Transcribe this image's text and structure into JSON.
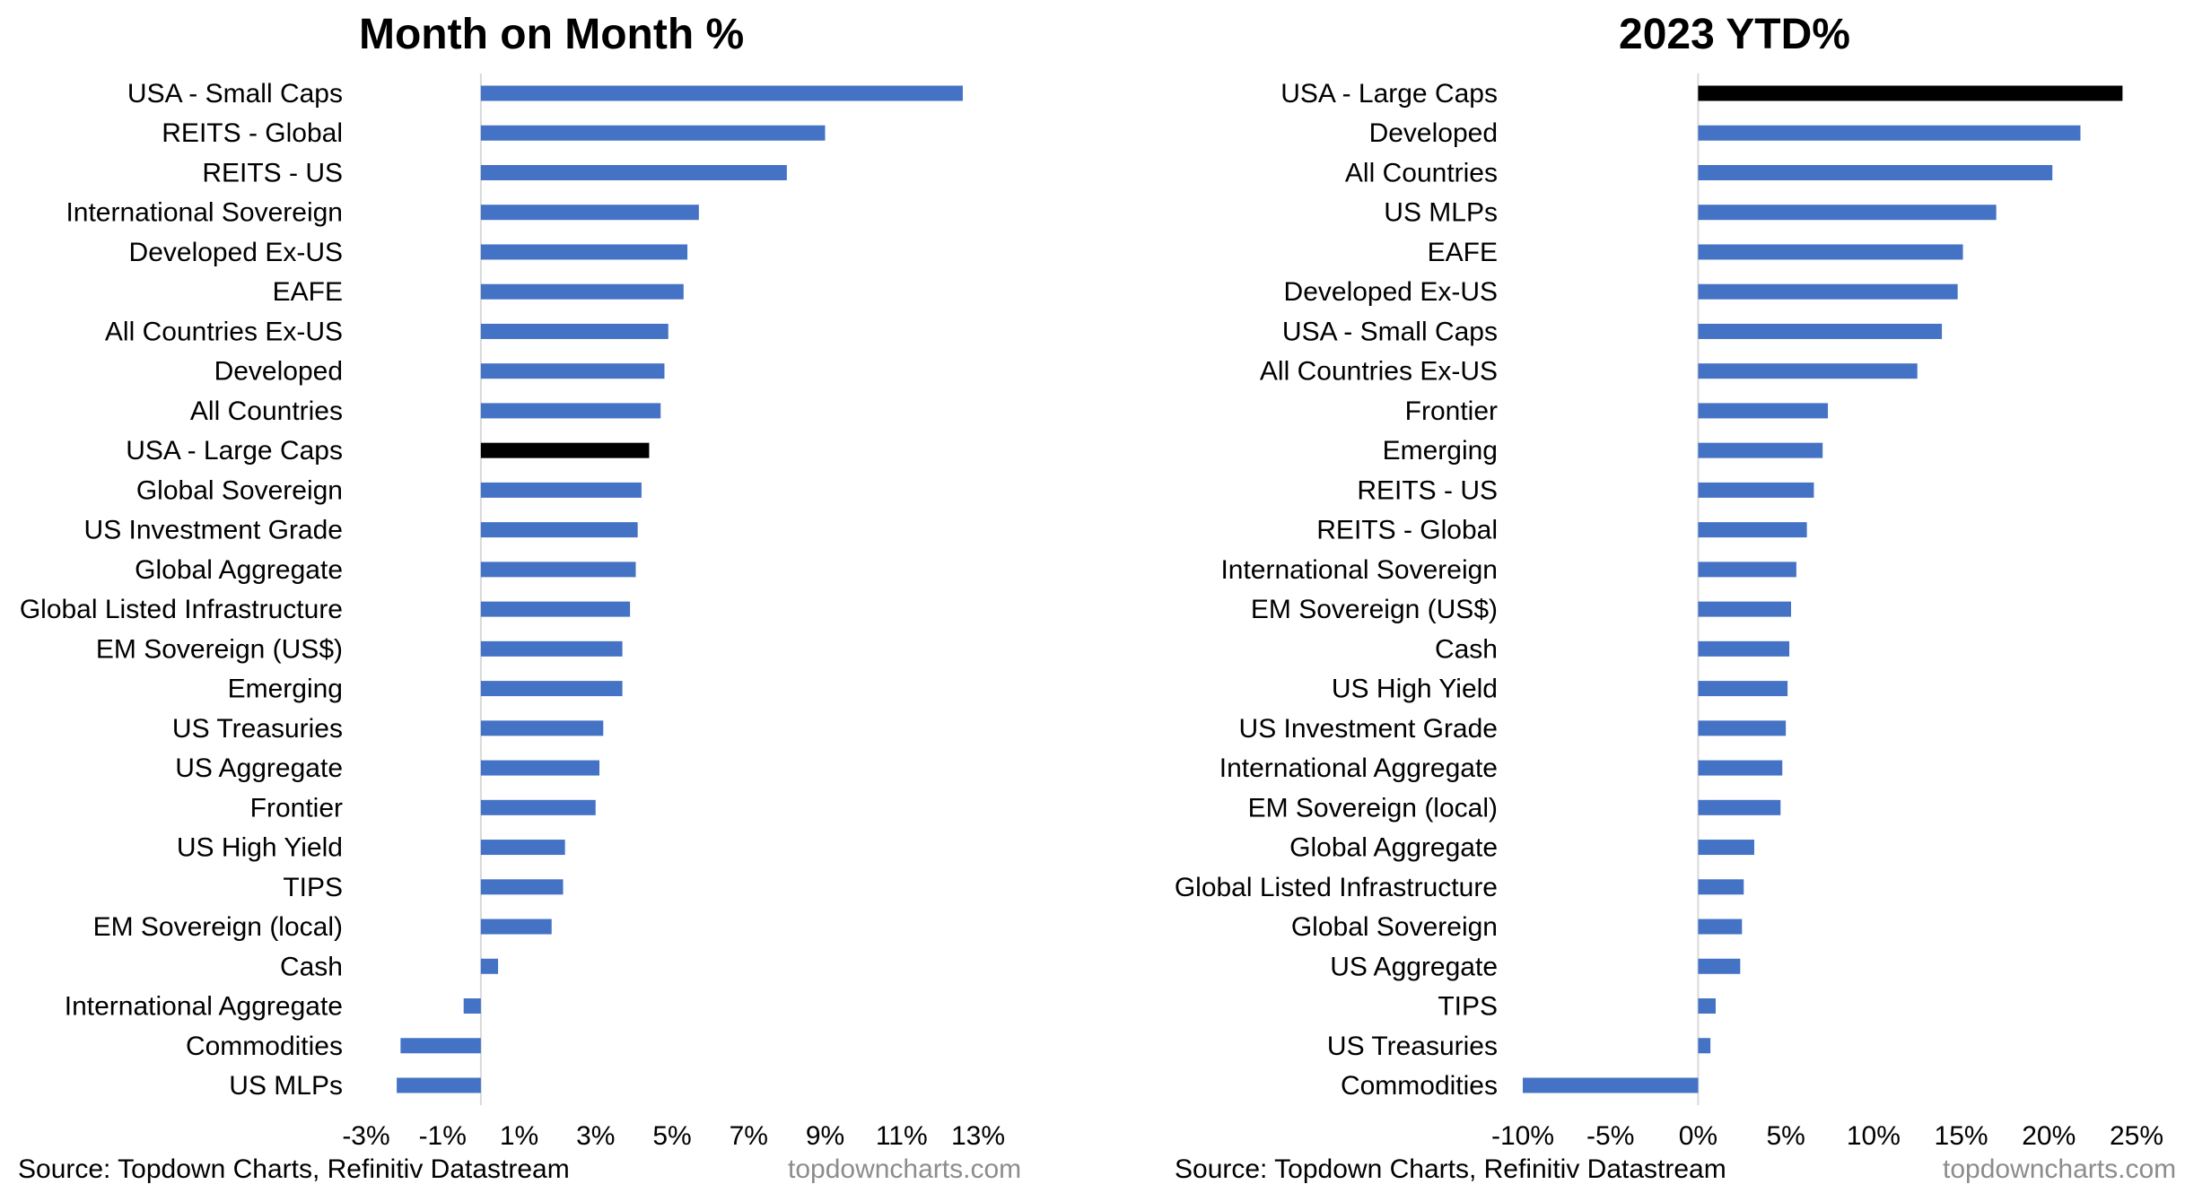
{
  "chart_data": [
    {
      "type": "bar",
      "orientation": "horizontal",
      "title": "Month on Month %",
      "categories": [
        "USA - Small Caps",
        "REITS - Global",
        "REITS - US",
        "International Sovereign",
        "Developed Ex-US",
        "EAFE",
        "All Countries Ex-US",
        "Developed",
        "All Countries",
        "USA - Large Caps",
        "Global Sovereign",
        "US Investment Grade",
        "Global Aggregate",
        "Global Listed Infrastructure",
        "EM Sovereign (US$)",
        "Emerging",
        "US Treasuries",
        "US Aggregate",
        "Frontier",
        "US High Yield",
        "TIPS",
        "EM Sovereign (local)",
        "Cash",
        "International Aggregate",
        "Commodities",
        "US MLPs"
      ],
      "values": [
        12.6,
        9.0,
        8.0,
        5.7,
        5.4,
        5.3,
        4.9,
        4.8,
        4.7,
        4.4,
        4.2,
        4.1,
        4.05,
        3.9,
        3.7,
        3.7,
        3.2,
        3.1,
        3.0,
        2.2,
        2.15,
        1.85,
        0.45,
        -0.45,
        -2.1,
        -2.2
      ],
      "highlight": "USA - Large Caps",
      "xlim": [
        -3,
        13
      ],
      "xticks": [
        -3,
        -1,
        1,
        3,
        5,
        7,
        9,
        11,
        13
      ],
      "xtick_labels": [
        "-3%",
        "-1%",
        "1%",
        "3%",
        "5%",
        "7%",
        "9%",
        "11%",
        "13%"
      ],
      "xlabel": "",
      "ylabel": "",
      "grid": false,
      "legend": "none",
      "colors": {
        "bar": "#4472C4",
        "highlight": "#000000",
        "axis": "#d9d9d9"
      }
    },
    {
      "type": "bar",
      "orientation": "horizontal",
      "title": "2023 YTD%",
      "categories": [
        "USA - Large Caps",
        "Developed",
        "All Countries",
        "US MLPs",
        "EAFE",
        "Developed Ex-US",
        "USA - Small Caps",
        "All Countries Ex-US",
        "Frontier",
        "Emerging",
        "REITS - US",
        "REITS - Global",
        "International Sovereign",
        "EM Sovereign (US$)",
        "Cash",
        "US High Yield",
        "US Investment Grade",
        "International Aggregate",
        "EM Sovereign (local)",
        "Global Aggregate",
        "Global Listed Infrastructure",
        "Global Sovereign",
        "US Aggregate",
        "TIPS",
        "US Treasuries",
        "Commodities"
      ],
      "values": [
        24.2,
        21.8,
        20.2,
        17.0,
        15.1,
        14.8,
        13.9,
        12.5,
        7.4,
        7.1,
        6.6,
        6.2,
        5.6,
        5.3,
        5.2,
        5.1,
        5.0,
        4.8,
        4.7,
        3.2,
        2.6,
        2.5,
        2.4,
        1.0,
        0.7,
        -10.0
      ],
      "highlight": "USA - Large Caps",
      "xlim": [
        -10,
        25
      ],
      "xticks": [
        -10,
        -5,
        0,
        5,
        10,
        15,
        20,
        25
      ],
      "xtick_labels": [
        "-10%",
        "-5%",
        "0%",
        "5%",
        "10%",
        "15%",
        "20%",
        "25%"
      ],
      "xlabel": "",
      "ylabel": "",
      "grid": false,
      "legend": "none",
      "colors": {
        "bar": "#4472C4",
        "highlight": "#000000",
        "axis": "#d9d9d9"
      }
    }
  ],
  "footer": {
    "source": "Source: Topdown Charts, Refinitiv Datastream",
    "site": "topdowncharts.com"
  }
}
